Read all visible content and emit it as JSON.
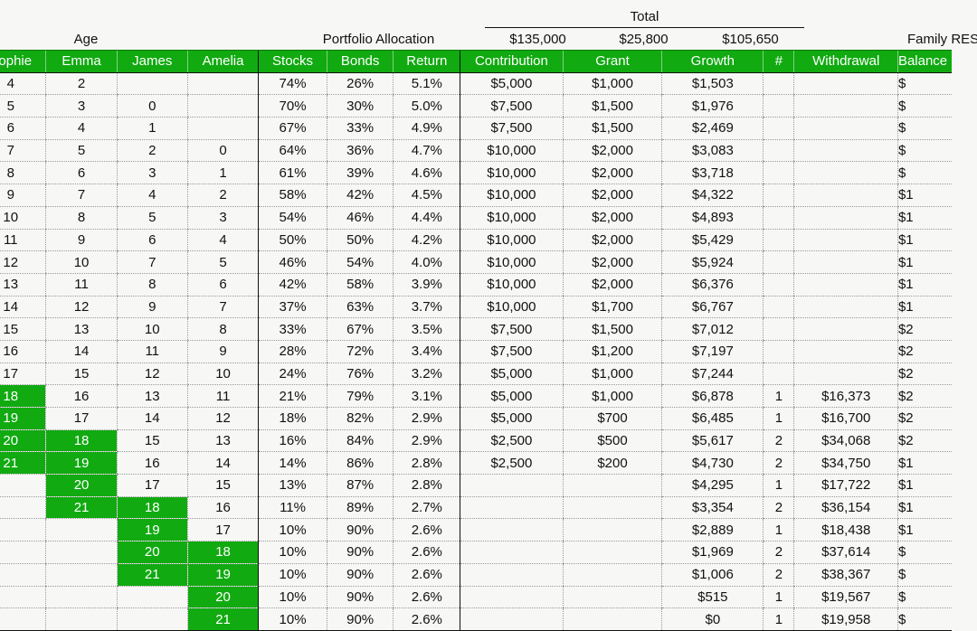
{
  "header": {
    "age": "Age",
    "portfolio": "Portfolio Allocation",
    "total": "Total",
    "total_contribution": "$135,000",
    "total_grant": "$25,800",
    "total_growth": "$105,650",
    "family": "Family RESP"
  },
  "columns": [
    "Sophie",
    "Emma",
    "James",
    "Amelia",
    "Stocks",
    "Bonds",
    "Return",
    "Contribution",
    "Grant",
    "Growth",
    "#",
    "Withdrawal",
    "Balance"
  ],
  "highlight_color": "#11aa11",
  "rows": [
    {
      "sophie": "4",
      "emma": "2",
      "james": "",
      "amelia": "",
      "stocks": "74%",
      "bonds": "26%",
      "ret": "5.1%",
      "contribution": "$5,000",
      "grant": "$1,000",
      "growth": "$1,503",
      "n": "",
      "withdrawal": "",
      "balance": "$",
      "hl": []
    },
    {
      "sophie": "5",
      "emma": "3",
      "james": "0",
      "amelia": "",
      "stocks": "70%",
      "bonds": "30%",
      "ret": "5.0%",
      "contribution": "$7,500",
      "grant": "$1,500",
      "growth": "$1,976",
      "n": "",
      "withdrawal": "",
      "balance": "$",
      "hl": []
    },
    {
      "sophie": "6",
      "emma": "4",
      "james": "1",
      "amelia": "",
      "stocks": "67%",
      "bonds": "33%",
      "ret": "4.9%",
      "contribution": "$7,500",
      "grant": "$1,500",
      "growth": "$2,469",
      "n": "",
      "withdrawal": "",
      "balance": "$",
      "hl": []
    },
    {
      "sophie": "7",
      "emma": "5",
      "james": "2",
      "amelia": "0",
      "stocks": "64%",
      "bonds": "36%",
      "ret": "4.7%",
      "contribution": "$10,000",
      "grant": "$2,000",
      "growth": "$3,083",
      "n": "",
      "withdrawal": "",
      "balance": "$",
      "hl": []
    },
    {
      "sophie": "8",
      "emma": "6",
      "james": "3",
      "amelia": "1",
      "stocks": "61%",
      "bonds": "39%",
      "ret": "4.6%",
      "contribution": "$10,000",
      "grant": "$2,000",
      "growth": "$3,718",
      "n": "",
      "withdrawal": "",
      "balance": "$",
      "hl": []
    },
    {
      "sophie": "9",
      "emma": "7",
      "james": "4",
      "amelia": "2",
      "stocks": "58%",
      "bonds": "42%",
      "ret": "4.5%",
      "contribution": "$10,000",
      "grant": "$2,000",
      "growth": "$4,322",
      "n": "",
      "withdrawal": "",
      "balance": "$1",
      "hl": []
    },
    {
      "sophie": "10",
      "emma": "8",
      "james": "5",
      "amelia": "3",
      "stocks": "54%",
      "bonds": "46%",
      "ret": "4.4%",
      "contribution": "$10,000",
      "grant": "$2,000",
      "growth": "$4,893",
      "n": "",
      "withdrawal": "",
      "balance": "$1",
      "hl": []
    },
    {
      "sophie": "11",
      "emma": "9",
      "james": "6",
      "amelia": "4",
      "stocks": "50%",
      "bonds": "50%",
      "ret": "4.2%",
      "contribution": "$10,000",
      "grant": "$2,000",
      "growth": "$5,429",
      "n": "",
      "withdrawal": "",
      "balance": "$1",
      "hl": []
    },
    {
      "sophie": "12",
      "emma": "10",
      "james": "7",
      "amelia": "5",
      "stocks": "46%",
      "bonds": "54%",
      "ret": "4.0%",
      "contribution": "$10,000",
      "grant": "$2,000",
      "growth": "$5,924",
      "n": "",
      "withdrawal": "",
      "balance": "$1",
      "hl": []
    },
    {
      "sophie": "13",
      "emma": "11",
      "james": "8",
      "amelia": "6",
      "stocks": "42%",
      "bonds": "58%",
      "ret": "3.9%",
      "contribution": "$10,000",
      "grant": "$2,000",
      "growth": "$6,376",
      "n": "",
      "withdrawal": "",
      "balance": "$1",
      "hl": []
    },
    {
      "sophie": "14",
      "emma": "12",
      "james": "9",
      "amelia": "7",
      "stocks": "37%",
      "bonds": "63%",
      "ret": "3.7%",
      "contribution": "$10,000",
      "grant": "$1,700",
      "growth": "$6,767",
      "n": "",
      "withdrawal": "",
      "balance": "$1",
      "hl": []
    },
    {
      "sophie": "15",
      "emma": "13",
      "james": "10",
      "amelia": "8",
      "stocks": "33%",
      "bonds": "67%",
      "ret": "3.5%",
      "contribution": "$7,500",
      "grant": "$1,500",
      "growth": "$7,012",
      "n": "",
      "withdrawal": "",
      "balance": "$2",
      "hl": []
    },
    {
      "sophie": "16",
      "emma": "14",
      "james": "11",
      "amelia": "9",
      "stocks": "28%",
      "bonds": "72%",
      "ret": "3.4%",
      "contribution": "$7,500",
      "grant": "$1,200",
      "growth": "$7,197",
      "n": "",
      "withdrawal": "",
      "balance": "$2",
      "hl": []
    },
    {
      "sophie": "17",
      "emma": "15",
      "james": "12",
      "amelia": "10",
      "stocks": "24%",
      "bonds": "76%",
      "ret": "3.2%",
      "contribution": "$5,000",
      "grant": "$1,000",
      "growth": "$7,244",
      "n": "",
      "withdrawal": "",
      "balance": "$2",
      "hl": []
    },
    {
      "sophie": "18",
      "emma": "16",
      "james": "13",
      "amelia": "11",
      "stocks": "21%",
      "bonds": "79%",
      "ret": "3.1%",
      "contribution": "$5,000",
      "grant": "$1,000",
      "growth": "$6,878",
      "n": "1",
      "withdrawal": "$16,373",
      "balance": "$2",
      "hl": [
        "sophie"
      ]
    },
    {
      "sophie": "19",
      "emma": "17",
      "james": "14",
      "amelia": "12",
      "stocks": "18%",
      "bonds": "82%",
      "ret": "2.9%",
      "contribution": "$5,000",
      "grant": "$700",
      "growth": "$6,485",
      "n": "1",
      "withdrawal": "$16,700",
      "balance": "$2",
      "hl": [
        "sophie"
      ]
    },
    {
      "sophie": "20",
      "emma": "18",
      "james": "15",
      "amelia": "13",
      "stocks": "16%",
      "bonds": "84%",
      "ret": "2.9%",
      "contribution": "$2,500",
      "grant": "$500",
      "growth": "$5,617",
      "n": "2",
      "withdrawal": "$34,068",
      "balance": "$2",
      "hl": [
        "sophie",
        "emma"
      ]
    },
    {
      "sophie": "21",
      "emma": "19",
      "james": "16",
      "amelia": "14",
      "stocks": "14%",
      "bonds": "86%",
      "ret": "2.8%",
      "contribution": "$2,500",
      "grant": "$200",
      "growth": "$4,730",
      "n": "2",
      "withdrawal": "$34,750",
      "balance": "$1",
      "hl": [
        "sophie",
        "emma"
      ]
    },
    {
      "sophie": "",
      "emma": "20",
      "james": "17",
      "amelia": "15",
      "stocks": "13%",
      "bonds": "87%",
      "ret": "2.8%",
      "contribution": "",
      "grant": "",
      "growth": "$4,295",
      "n": "1",
      "withdrawal": "$17,722",
      "balance": "$1",
      "hl": [
        "emma"
      ]
    },
    {
      "sophie": "",
      "emma": "21",
      "james": "18",
      "amelia": "16",
      "stocks": "11%",
      "bonds": "89%",
      "ret": "2.7%",
      "contribution": "",
      "grant": "",
      "growth": "$3,354",
      "n": "2",
      "withdrawal": "$36,154",
      "balance": "$1",
      "hl": [
        "emma",
        "james"
      ]
    },
    {
      "sophie": "",
      "emma": "",
      "james": "19",
      "amelia": "17",
      "stocks": "10%",
      "bonds": "90%",
      "ret": "2.6%",
      "contribution": "",
      "grant": "",
      "growth": "$2,889",
      "n": "1",
      "withdrawal": "$18,438",
      "balance": "$1",
      "hl": [
        "james"
      ]
    },
    {
      "sophie": "",
      "emma": "",
      "james": "20",
      "amelia": "18",
      "stocks": "10%",
      "bonds": "90%",
      "ret": "2.6%",
      "contribution": "",
      "grant": "",
      "growth": "$1,969",
      "n": "2",
      "withdrawal": "$37,614",
      "balance": "$",
      "hl": [
        "james",
        "amelia"
      ]
    },
    {
      "sophie": "",
      "emma": "",
      "james": "21",
      "amelia": "19",
      "stocks": "10%",
      "bonds": "90%",
      "ret": "2.6%",
      "contribution": "",
      "grant": "",
      "growth": "$1,006",
      "n": "2",
      "withdrawal": "$38,367",
      "balance": "$",
      "hl": [
        "james",
        "amelia"
      ]
    },
    {
      "sophie": "",
      "emma": "",
      "james": "",
      "amelia": "20",
      "stocks": "10%",
      "bonds": "90%",
      "ret": "2.6%",
      "contribution": "",
      "grant": "",
      "growth": "$515",
      "n": "1",
      "withdrawal": "$19,567",
      "balance": "$",
      "hl": [
        "amelia"
      ]
    },
    {
      "sophie": "",
      "emma": "",
      "james": "",
      "amelia": "21",
      "stocks": "10%",
      "bonds": "90%",
      "ret": "2.6%",
      "contribution": "",
      "grant": "",
      "growth": "$0",
      "n": "1",
      "withdrawal": "$19,958",
      "balance": "$",
      "hl": [
        "amelia"
      ]
    }
  ]
}
